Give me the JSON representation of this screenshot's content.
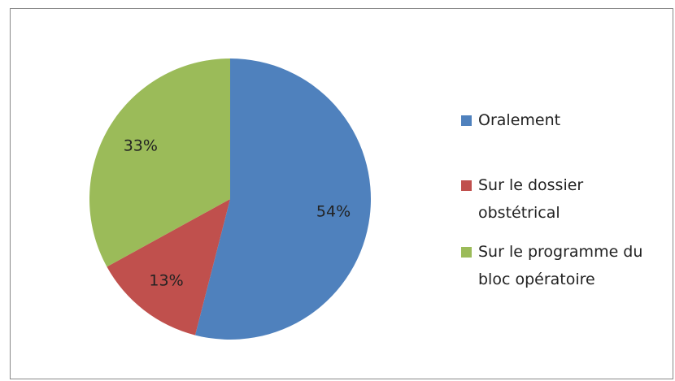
{
  "chart_data": {
    "type": "pie",
    "categories": [
      "Oralement",
      "Sur le dossier obstétrical",
      "Sur le programme du bloc opératoire"
    ],
    "values": [
      54,
      13,
      33
    ],
    "value_labels": [
      "54%",
      "13%",
      "33%"
    ],
    "colors": [
      "#4f81bd",
      "#c0504d",
      "#9bbb59"
    ],
    "legend": "right"
  }
}
